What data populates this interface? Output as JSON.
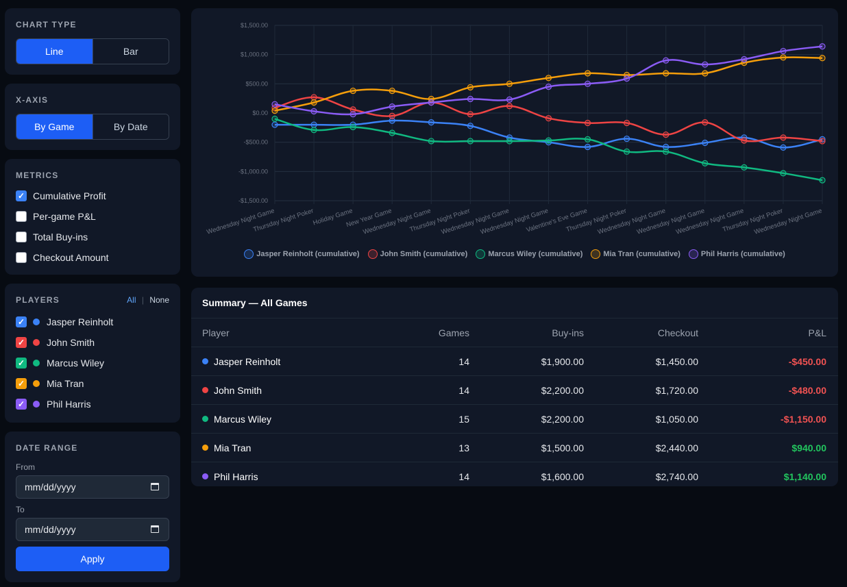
{
  "chart_type": {
    "title": "CHART TYPE",
    "options": [
      "Line",
      "Bar"
    ],
    "selected": "Line"
  },
  "x_axis": {
    "title": "X-AXIS",
    "options": [
      "By Game",
      "By Date"
    ],
    "selected": "By Game"
  },
  "metrics": {
    "title": "METRICS",
    "items": [
      {
        "label": "Cumulative Profit",
        "checked": true
      },
      {
        "label": "Per-game P&L",
        "checked": false
      },
      {
        "label": "Total Buy-ins",
        "checked": false
      },
      {
        "label": "Checkout Amount",
        "checked": false
      }
    ]
  },
  "players": {
    "title": "PLAYERS",
    "all_label": "All",
    "separator": "|",
    "none_label": "None",
    "items": [
      {
        "name": "Jasper Reinholt",
        "color": "#3b82f6",
        "checked": true
      },
      {
        "name": "John Smith",
        "color": "#ef4444",
        "checked": true
      },
      {
        "name": "Marcus Wiley",
        "color": "#10b981",
        "checked": true
      },
      {
        "name": "Mia Tran",
        "color": "#f59e0b",
        "checked": true
      },
      {
        "name": "Phil Harris",
        "color": "#8b5cf6",
        "checked": true
      }
    ]
  },
  "date_range": {
    "title": "DATE RANGE",
    "from_label": "From",
    "from_value": "mm/dd/yyyy",
    "to_label": "To",
    "to_value": "mm/dd/yyyy",
    "apply_label": "Apply"
  },
  "chart_data": {
    "type": "line",
    "categories": [
      "Wednesday Night Game",
      "Thursday Night Poker",
      "Holiday Game",
      "New Year Game",
      "Wednesday Night Game",
      "Thursday Night Poker",
      "Wednesday Night Game",
      "Wednesday Night Game",
      "Valentine's Eve Game",
      "Thursday Night Poker",
      "Wednesday Night Game",
      "Wednesday Night Game",
      "Wednesday Night Game",
      "Thursday Night Poker",
      "Wednesday Night Game"
    ],
    "ylim": [
      -1500,
      1500
    ],
    "yticks": [
      1500,
      1000,
      500,
      0,
      -500,
      -1000,
      -1500
    ],
    "ytick_labels": [
      "$1,500.00",
      "$1,000.00",
      "$500.00",
      "$0.00",
      "-$500.00",
      "-$1,000.00",
      "-$1,500.00"
    ],
    "grid": true,
    "legend_position": "bottom",
    "series": [
      {
        "name": "Jasper Reinholt (cumulative)",
        "color": "#3b82f6",
        "values": [
          -200,
          -200,
          -200,
          -130,
          -160,
          -220,
          -420,
          -500,
          -580,
          -440,
          -580,
          -510,
          -420,
          -590,
          -450
        ]
      },
      {
        "name": "John Smith (cumulative)",
        "color": "#ef4444",
        "values": [
          90,
          270,
          60,
          -50,
          180,
          -20,
          120,
          -90,
          -170,
          -170,
          -370,
          -160,
          -470,
          -420,
          -480
        ]
      },
      {
        "name": "Marcus Wiley (cumulative)",
        "color": "#10b981",
        "values": [
          -100,
          -290,
          -240,
          -340,
          -480,
          -480,
          -480,
          -470,
          -450,
          -660,
          -660,
          -860,
          -930,
          -1030,
          -1150
        ]
      },
      {
        "name": "Mia Tran (cumulative)",
        "color": "#f59e0b",
        "values": [
          40,
          180,
          380,
          380,
          240,
          440,
          500,
          600,
          680,
          650,
          680,
          680,
          860,
          950,
          940
        ]
      },
      {
        "name": "Phil Harris (cumulative)",
        "color": "#8b5cf6",
        "values": [
          150,
          30,
          -20,
          110,
          180,
          240,
          230,
          450,
          500,
          590,
          900,
          830,
          920,
          1060,
          1140
        ]
      }
    ]
  },
  "summary": {
    "title": "Summary — All Games",
    "columns": [
      "Player",
      "Games",
      "Buy-ins",
      "Checkout",
      "P&L"
    ],
    "rows": [
      {
        "player": "Jasper Reinholt",
        "color": "#3b82f6",
        "games": "14",
        "buyins": "$1,900.00",
        "checkout": "$1,450.00",
        "pl": "-$450.00",
        "pl_sign": "neg"
      },
      {
        "player": "John Smith",
        "color": "#ef4444",
        "games": "14",
        "buyins": "$2,200.00",
        "checkout": "$1,720.00",
        "pl": "-$480.00",
        "pl_sign": "neg"
      },
      {
        "player": "Marcus Wiley",
        "color": "#10b981",
        "games": "15",
        "buyins": "$2,200.00",
        "checkout": "$1,050.00",
        "pl": "-$1,150.00",
        "pl_sign": "neg"
      },
      {
        "player": "Mia Tran",
        "color": "#f59e0b",
        "games": "13",
        "buyins": "$1,500.00",
        "checkout": "$2,440.00",
        "pl": "$940.00",
        "pl_sign": "pos"
      },
      {
        "player": "Phil Harris",
        "color": "#8b5cf6",
        "games": "14",
        "buyins": "$1,600.00",
        "checkout": "$2,740.00",
        "pl": "$1,140.00",
        "pl_sign": "pos"
      }
    ]
  }
}
